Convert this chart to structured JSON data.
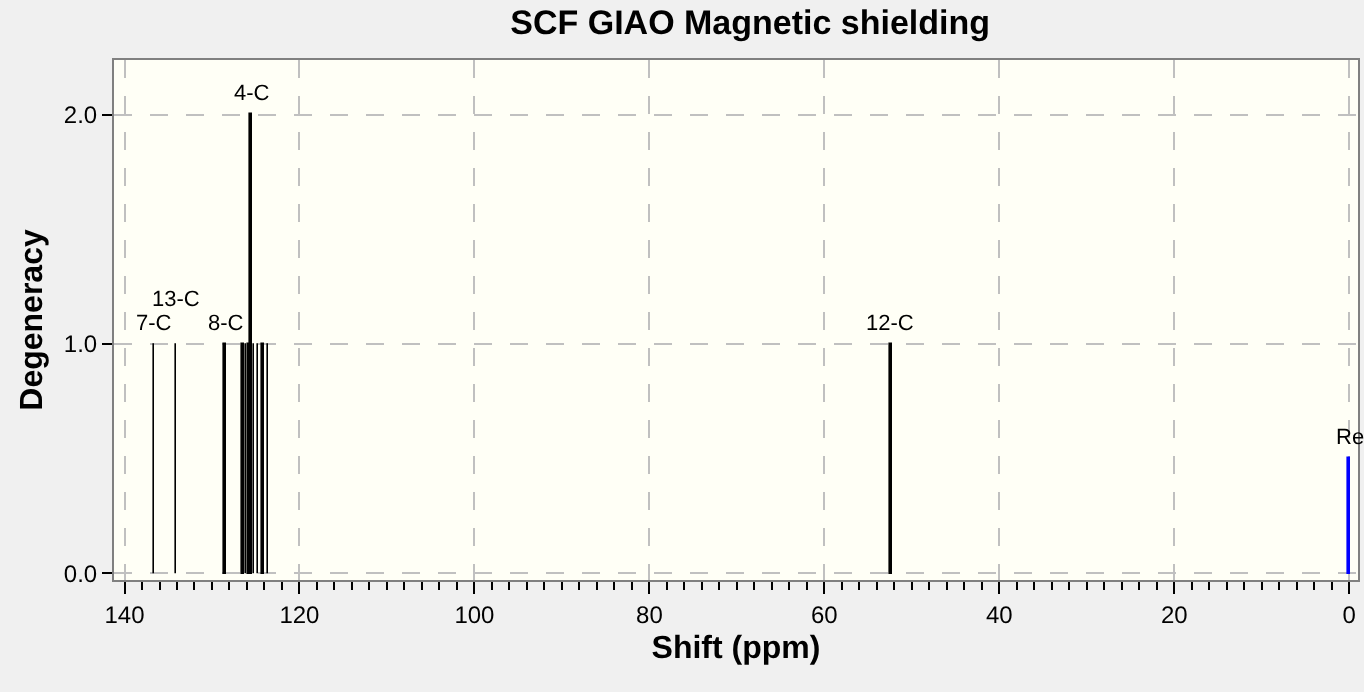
{
  "chart_data": {
    "type": "bar",
    "title": "SCF GIAO Magnetic shielding",
    "xlabel": "Shift (ppm)",
    "ylabel": "Degeneracy",
    "x": [
      136.6,
      134.1,
      128.5,
      126.4,
      126.1,
      125.8,
      125.5,
      125.2,
      124.7,
      124.2,
      123.6,
      52.4,
      0
    ],
    "values": [
      1,
      1,
      1,
      1,
      1,
      1,
      2,
      1,
      1,
      1,
      1,
      1,
      0.5
    ],
    "colors": [
      "#000000",
      "#000000",
      "#000000",
      "#000000",
      "#000000",
      "#000000",
      "#000000",
      "#000000",
      "#000000",
      "#000000",
      "#000000",
      "#000000",
      "#0000ff"
    ],
    "xlim": [
      141.2,
      -1
    ],
    "xticks": [
      140,
      120,
      100,
      80,
      60,
      40,
      20,
      0
    ],
    "ylim": [
      -0.03,
      2.24
    ],
    "yticks": [
      {
        "value": 0,
        "label": "0.0"
      },
      {
        "value": 1,
        "label": "1.0"
      },
      {
        "value": 2,
        "label": "2.0"
      }
    ],
    "grid": true,
    "annotations": [
      {
        "text": "7-C",
        "x": 136.6,
        "y": 1
      },
      {
        "text": "13-C",
        "x": 134.1,
        "y": 1
      },
      {
        "text": "8-C",
        "x": 128.5,
        "y": 1
      },
      {
        "text": "4-C",
        "x": 125.5,
        "y": 2
      },
      {
        "text": "12-C",
        "x": 52.4,
        "y": 1
      },
      {
        "text": "Re",
        "x": 0,
        "y": 0.5
      }
    ]
  }
}
